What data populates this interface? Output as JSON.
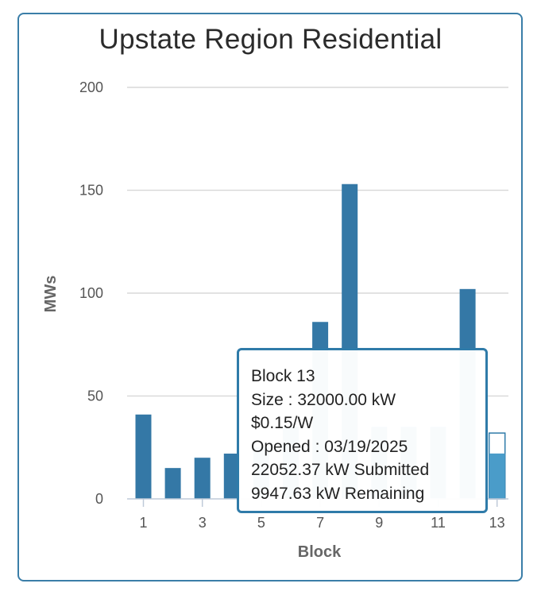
{
  "chart_data": {
    "type": "bar",
    "title": "Upstate Region Residential",
    "xlabel": "Block",
    "ylabel": "MWs",
    "ylim": [
      0,
      200
    ],
    "yticks": [
      0,
      50,
      100,
      150,
      200
    ],
    "categories": [
      1,
      2,
      3,
      4,
      5,
      6,
      7,
      8,
      9,
      10,
      11,
      12,
      13
    ],
    "xtick_labels": [
      "1",
      "3",
      "5",
      "7",
      "9",
      "11",
      "13"
    ],
    "values": [
      41,
      15,
      20,
      22,
      25,
      35,
      86,
      153,
      35,
      35,
      35,
      102,
      32
    ],
    "submitted_block_13": 22.05237,
    "grid": true,
    "colors": {
      "bar": "#3478a6",
      "bar_highlight": "#4a9cc9",
      "bar_outline": "#2f7ba9",
      "grid": "#d9d9d9",
      "border": "#3a7ea8"
    }
  },
  "tooltip": {
    "lines": [
      "Block 13",
      "Size : 32000.00 kW",
      "$0.15/W",
      "Opened : 03/19/2025",
      "22052.37 kW Submitted",
      "9947.63 kW Remaining"
    ]
  }
}
